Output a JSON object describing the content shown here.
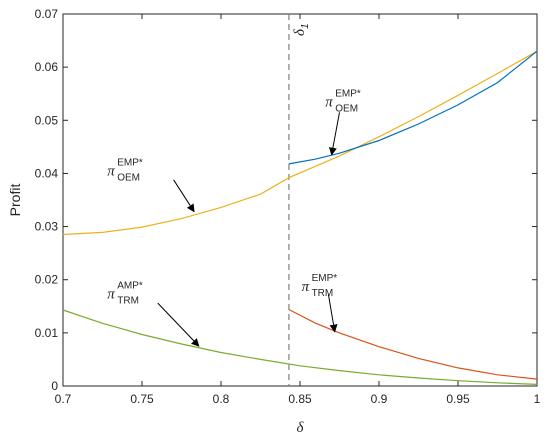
{
  "chart_data": {
    "type": "line",
    "xlabel": "δ",
    "ylabel": "Profit",
    "xlim": [
      0.7,
      1.0
    ],
    "ylim": [
      0,
      0.07
    ],
    "xticks": [
      0.7,
      0.75,
      0.8,
      0.85,
      0.9,
      0.95,
      1.0
    ],
    "xtick_labels": [
      "0.7",
      "0.75",
      "0.8",
      "0.85",
      "0.9",
      "0.95",
      "1"
    ],
    "yticks": [
      0,
      0.01,
      0.02,
      0.03,
      0.04,
      0.05,
      0.06,
      0.07
    ],
    "ytick_labels": [
      "0",
      "0.01",
      "0.02",
      "0.03",
      "0.04",
      "0.05",
      "0.06",
      "0.07"
    ],
    "grid": false,
    "colors": {
      "orange": "#EDB120",
      "green": "#77AC30",
      "blue": "#0072BD",
      "red": "#D95319",
      "axis": "#262626",
      "vline": "#7f7f7f"
    },
    "series": [
      {
        "color": "orange",
        "x": [
          0.7,
          0.725,
          0.75,
          0.775,
          0.8,
          0.825,
          0.843,
          0.875,
          0.9,
          0.925,
          0.95,
          0.975,
          1.0
        ],
        "y": [
          0.0285,
          0.0289,
          0.0299,
          0.0315,
          0.0336,
          0.0361,
          0.0392,
          0.0433,
          0.0469,
          0.0507,
          0.0547,
          0.0588,
          0.063
        ]
      },
      {
        "color": "green",
        "x": [
          0.7,
          0.725,
          0.75,
          0.775,
          0.8,
          0.825,
          0.85,
          0.875,
          0.9,
          0.925,
          0.95,
          0.975,
          1.0
        ],
        "y": [
          0.0143,
          0.0118,
          0.0097,
          0.0079,
          0.0063,
          0.005,
          0.0038,
          0.0029,
          0.0021,
          0.0015,
          0.001,
          0.0006,
          0.0003
        ]
      },
      {
        "color": "blue",
        "x": [
          0.843,
          0.86,
          0.875,
          0.9,
          0.925,
          0.95,
          0.975,
          1.0
        ],
        "y": [
          0.0418,
          0.0427,
          0.0438,
          0.0462,
          0.0493,
          0.0529,
          0.0571,
          0.063
        ]
      },
      {
        "color": "red",
        "x": [
          0.843,
          0.86,
          0.875,
          0.9,
          0.925,
          0.95,
          0.975,
          1.0
        ],
        "y": [
          0.0144,
          0.0118,
          0.01,
          0.0074,
          0.0052,
          0.0034,
          0.0021,
          0.0013
        ]
      }
    ],
    "vline": {
      "x": 0.843,
      "label": "δ",
      "label_sub": "1"
    },
    "annotations": [
      {
        "id": "oem-emp",
        "sym": "π",
        "sup": "EMP*",
        "sub": "OEM",
        "text_at": [
          0.728,
          0.0415
        ],
        "arrow_from": [
          0.77,
          0.0388
        ],
        "arrow_to": [
          0.783,
          0.0328
        ]
      },
      {
        "id": "oem-emp-upper",
        "sym": "π",
        "sup": "EMP*",
        "sub": "OEM",
        "text_at": [
          0.866,
          0.0545
        ],
        "arrow_from": [
          0.875,
          0.0515
        ],
        "arrow_to": [
          0.87,
          0.0435
        ]
      },
      {
        "id": "trm-amp",
        "sym": "π",
        "sup": "AMP*",
        "sub": "TRM",
        "text_at": [
          0.728,
          0.0183
        ],
        "arrow_from": [
          0.76,
          0.0156
        ],
        "arrow_to": [
          0.786,
          0.0075
        ]
      },
      {
        "id": "trm-emp",
        "sym": "π",
        "sup": "EMP*",
        "sub": "TRM",
        "text_at": [
          0.851,
          0.0198
        ],
        "arrow_from": [
          0.868,
          0.0172
        ],
        "arrow_to": [
          0.872,
          0.0102
        ]
      }
    ]
  }
}
